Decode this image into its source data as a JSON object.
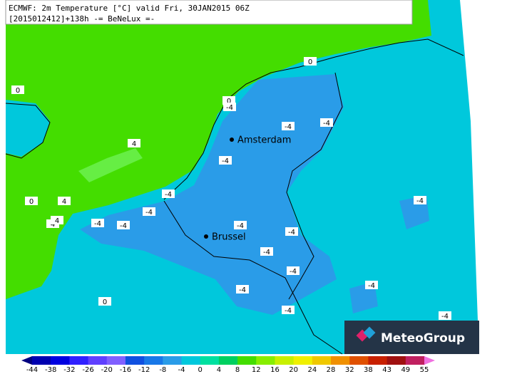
{
  "header": {
    "line1": "ECMWF: 2m Temperature [°C] valid Fri, 30JAN2015 06Z",
    "line2": "[2015012412]+138h  -= BeNeLux =-"
  },
  "cities": [
    "Amsterdam",
    "Brussel"
  ],
  "contour_labels": [
    0,
    0,
    0,
    0,
    0,
    -4,
    -4,
    -4,
    -4,
    -4,
    -4,
    -4,
    -4,
    -4,
    -4,
    -4,
    -4,
    -4,
    -4,
    -4,
    -4,
    -4,
    4,
    4,
    4,
    4
  ],
  "colorbar": {
    "ticks": [
      -44,
      -38,
      -32,
      -26,
      -20,
      -16,
      -12,
      -8,
      -4,
      0,
      4,
      8,
      12,
      16,
      20,
      24,
      28,
      32,
      38,
      43,
      49,
      55
    ]
  },
  "logo": "MeteoGroup"
}
